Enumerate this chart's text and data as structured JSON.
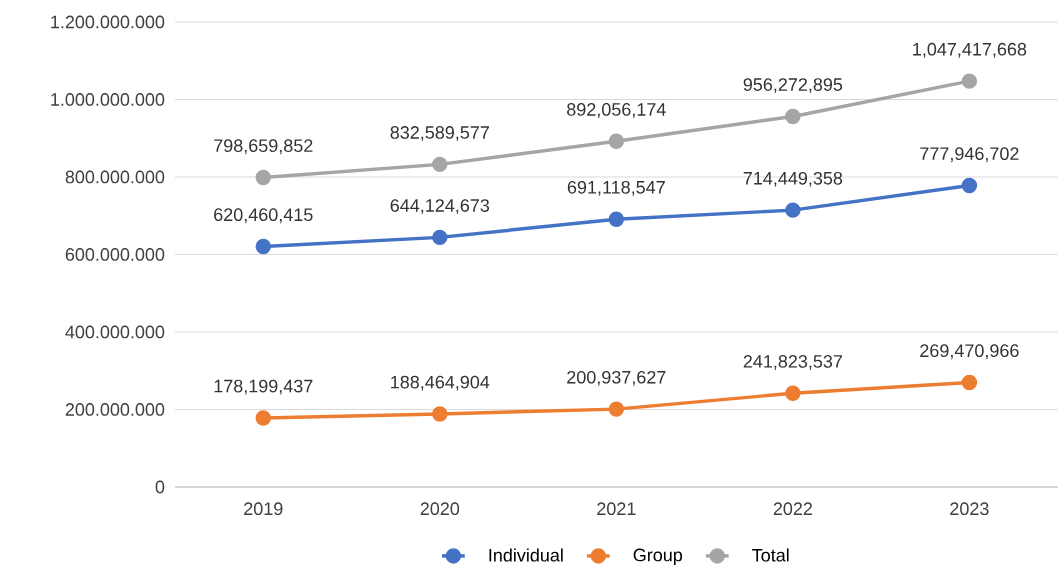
{
  "chart_data": {
    "type": "line",
    "categories": [
      "2019",
      "2020",
      "2021",
      "2022",
      "2023"
    ],
    "series": [
      {
        "name": "Individual",
        "color": "#4472c4",
        "values": [
          620460415,
          644124673,
          691118547,
          714449358,
          777946702
        ],
        "value_labels": [
          "620,460,415",
          "644,124,673",
          "691,118,547",
          "714,449,358",
          "777,946,702"
        ]
      },
      {
        "name": "Group",
        "color": "#ed7d31",
        "values": [
          178199437,
          188464904,
          200937627,
          241823537,
          269470966
        ],
        "value_labels": [
          "178,199,437",
          "188,464,904",
          "200,937,627",
          "241,823,537",
          "269,470,966"
        ]
      },
      {
        "name": "Total",
        "color": "#a5a5a5",
        "values": [
          798659852,
          832589577,
          892056174,
          956272895,
          1047417668
        ],
        "value_labels": [
          "798,659,852",
          "832,589,577",
          "892,056,174",
          "956,272,895",
          "1,047,417,668"
        ]
      }
    ],
    "ylim": [
      0,
      1200000000
    ],
    "yticks": [
      0,
      {
        "value": 200000000,
        "label": "200.000.000"
      },
      {
        "value": 400000000,
        "label": "400.000.000"
      },
      {
        "value": 600000000,
        "label": "600.000.000"
      },
      {
        "value": 800000000,
        "label": "800.000.000"
      },
      {
        "value": 1000000000,
        "label": "1.000.000.000"
      },
      {
        "value": 1200000000,
        "label": "1.200.000.000"
      }
    ],
    "grid": "y",
    "legend": "bottom",
    "marker": "circle",
    "line_style": "solid"
  }
}
